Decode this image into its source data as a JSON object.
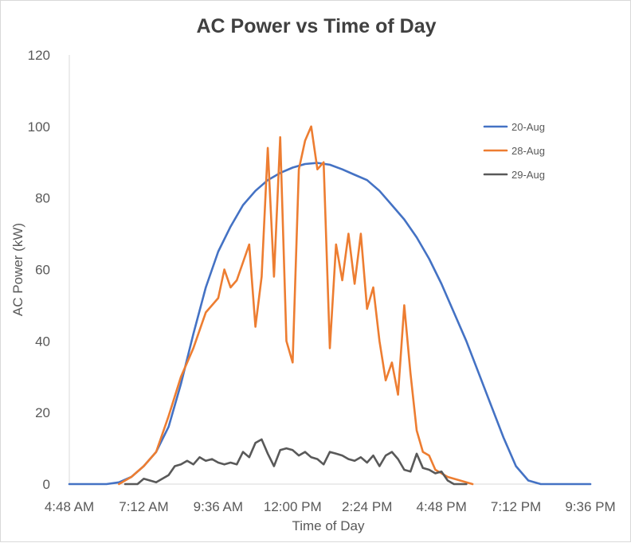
{
  "chart_data": {
    "type": "line",
    "title": "AC Power vs Time of Day",
    "xlabel": "Time of Day",
    "ylabel": "AC Power (kW)",
    "xlim": [
      "4:48 AM",
      "9:36 PM"
    ],
    "ylim": [
      0,
      120
    ],
    "x_ticks": [
      "4:48 AM",
      "7:12 AM",
      "9:36 AM",
      "12:00 PM",
      "2:24 PM",
      "4:48 PM",
      "7:12 PM",
      "9:36 PM"
    ],
    "y_ticks": [
      "0",
      "20",
      "40",
      "60",
      "80",
      "100",
      "120"
    ],
    "grid": false,
    "legend": "right",
    "series": [
      {
        "name": "20-Aug",
        "color": "#4472c4",
        "points": [
          [
            "4:48 AM",
            0
          ],
          [
            "5:24 AM",
            0
          ],
          [
            "6:00 AM",
            0
          ],
          [
            "6:24 AM",
            0.5
          ],
          [
            "6:48 AM",
            2
          ],
          [
            "7:12 AM",
            5
          ],
          [
            "7:36 AM",
            9
          ],
          [
            "8:00 AM",
            16
          ],
          [
            "8:24 AM",
            28
          ],
          [
            "8:48 AM",
            42
          ],
          [
            "9:12 AM",
            55
          ],
          [
            "9:36 AM",
            65
          ],
          [
            "10:00 AM",
            72
          ],
          [
            "10:24 AM",
            78
          ],
          [
            "10:48 AM",
            82
          ],
          [
            "11:12 AM",
            85
          ],
          [
            "11:36 AM",
            87
          ],
          [
            "12:00 PM",
            88.5
          ],
          [
            "12:24 PM",
            89.5
          ],
          [
            "12:48 PM",
            89.8
          ],
          [
            "1:12 PM",
            89.3
          ],
          [
            "1:36 PM",
            88
          ],
          [
            "2:00 PM",
            86.5
          ],
          [
            "2:24 PM",
            85
          ],
          [
            "2:48 PM",
            82
          ],
          [
            "3:12 PM",
            78
          ],
          [
            "3:36 PM",
            74
          ],
          [
            "4:00 PM",
            69
          ],
          [
            "4:24 PM",
            63
          ],
          [
            "4:48 PM",
            56
          ],
          [
            "5:12 PM",
            48
          ],
          [
            "5:36 PM",
            40
          ],
          [
            "6:00 PM",
            31
          ],
          [
            "6:24 PM",
            22
          ],
          [
            "6:48 PM",
            13
          ],
          [
            "7:12 PM",
            5
          ],
          [
            "7:36 PM",
            1
          ],
          [
            "8:00 PM",
            0
          ],
          [
            "8:24 PM",
            0
          ],
          [
            "9:00 PM",
            0
          ],
          [
            "9:36 PM",
            0
          ]
        ]
      },
      {
        "name": "28-Aug",
        "color": "#ed7d31",
        "points": [
          [
            "6:24 AM",
            0
          ],
          [
            "6:48 AM",
            2
          ],
          [
            "7:12 AM",
            5
          ],
          [
            "7:36 AM",
            9
          ],
          [
            "8:00 AM",
            19
          ],
          [
            "8:24 AM",
            30
          ],
          [
            "8:48 AM",
            38
          ],
          [
            "9:12 AM",
            48
          ],
          [
            "9:36 AM",
            52
          ],
          [
            "9:48 AM",
            60
          ],
          [
            "10:00 AM",
            55
          ],
          [
            "10:12 AM",
            57
          ],
          [
            "10:24 AM",
            62
          ],
          [
            "10:36 AM",
            67
          ],
          [
            "10:48 AM",
            44
          ],
          [
            "11:00 AM",
            58
          ],
          [
            "11:12 AM",
            94
          ],
          [
            "11:24 AM",
            58
          ],
          [
            "11:36 AM",
            97
          ],
          [
            "11:48 AM",
            40
          ],
          [
            "12:00 PM",
            34
          ],
          [
            "12:12 PM",
            88
          ],
          [
            "12:24 PM",
            96
          ],
          [
            "12:36 PM",
            100
          ],
          [
            "12:48 PM",
            88
          ],
          [
            "1:00 PM",
            90
          ],
          [
            "1:12 PM",
            38
          ],
          [
            "1:24 PM",
            67
          ],
          [
            "1:36 PM",
            57
          ],
          [
            "1:48 PM",
            70
          ],
          [
            "2:00 PM",
            56
          ],
          [
            "2:12 PM",
            70
          ],
          [
            "2:24 PM",
            49
          ],
          [
            "2:36 PM",
            55
          ],
          [
            "2:48 PM",
            40
          ],
          [
            "3:00 PM",
            29
          ],
          [
            "3:12 PM",
            34
          ],
          [
            "3:24 PM",
            25
          ],
          [
            "3:36 PM",
            50
          ],
          [
            "3:48 PM",
            31
          ],
          [
            "4:00 PM",
            15
          ],
          [
            "4:12 PM",
            9
          ],
          [
            "4:24 PM",
            8
          ],
          [
            "4:36 PM",
            4
          ],
          [
            "5:00 PM",
            2
          ],
          [
            "5:24 PM",
            1
          ],
          [
            "5:48 PM",
            0
          ]
        ]
      },
      {
        "name": "29-Aug",
        "color": "#595959",
        "points": [
          [
            "6:36 AM",
            0
          ],
          [
            "7:00 AM",
            0
          ],
          [
            "7:12 AM",
            1.5
          ],
          [
            "7:24 AM",
            1
          ],
          [
            "7:36 AM",
            0.5
          ],
          [
            "7:48 AM",
            1.5
          ],
          [
            "8:00 AM",
            2.5
          ],
          [
            "8:12 AM",
            5
          ],
          [
            "8:24 AM",
            5.5
          ],
          [
            "8:36 AM",
            6.5
          ],
          [
            "8:48 AM",
            5.5
          ],
          [
            "9:00 AM",
            7.5
          ],
          [
            "9:12 AM",
            6.5
          ],
          [
            "9:24 AM",
            7
          ],
          [
            "9:36 AM",
            6
          ],
          [
            "9:48 AM",
            5.5
          ],
          [
            "10:00 AM",
            6
          ],
          [
            "10:12 AM",
            5.5
          ],
          [
            "10:24 AM",
            9
          ],
          [
            "10:36 AM",
            7.5
          ],
          [
            "10:48 AM",
            11.5
          ],
          [
            "11:00 AM",
            12.5
          ],
          [
            "11:12 AM",
            8.5
          ],
          [
            "11:24 AM",
            5
          ],
          [
            "11:36 AM",
            9.5
          ],
          [
            "11:48 AM",
            10
          ],
          [
            "12:00 PM",
            9.5
          ],
          [
            "12:12 PM",
            8
          ],
          [
            "12:24 PM",
            9
          ],
          [
            "12:36 PM",
            7.5
          ],
          [
            "12:48 PM",
            7
          ],
          [
            "1:00 PM",
            5.5
          ],
          [
            "1:12 PM",
            9
          ],
          [
            "1:24 PM",
            8.5
          ],
          [
            "1:36 PM",
            8
          ],
          [
            "1:48 PM",
            7
          ],
          [
            "2:00 PM",
            6.5
          ],
          [
            "2:12 PM",
            7.5
          ],
          [
            "2:24 PM",
            6
          ],
          [
            "2:36 PM",
            8
          ],
          [
            "2:48 PM",
            5
          ],
          [
            "3:00 PM",
            8
          ],
          [
            "3:12 PM",
            9
          ],
          [
            "3:24 PM",
            7
          ],
          [
            "3:36 PM",
            4
          ],
          [
            "3:48 PM",
            3.5
          ],
          [
            "4:00 PM",
            8.5
          ],
          [
            "4:12 PM",
            4.5
          ],
          [
            "4:24 PM",
            4
          ],
          [
            "4:36 PM",
            3
          ],
          [
            "4:48 PM",
            3.5
          ],
          [
            "5:00 PM",
            1
          ],
          [
            "5:12 PM",
            0
          ],
          [
            "5:36 PM",
            0
          ]
        ]
      }
    ]
  }
}
